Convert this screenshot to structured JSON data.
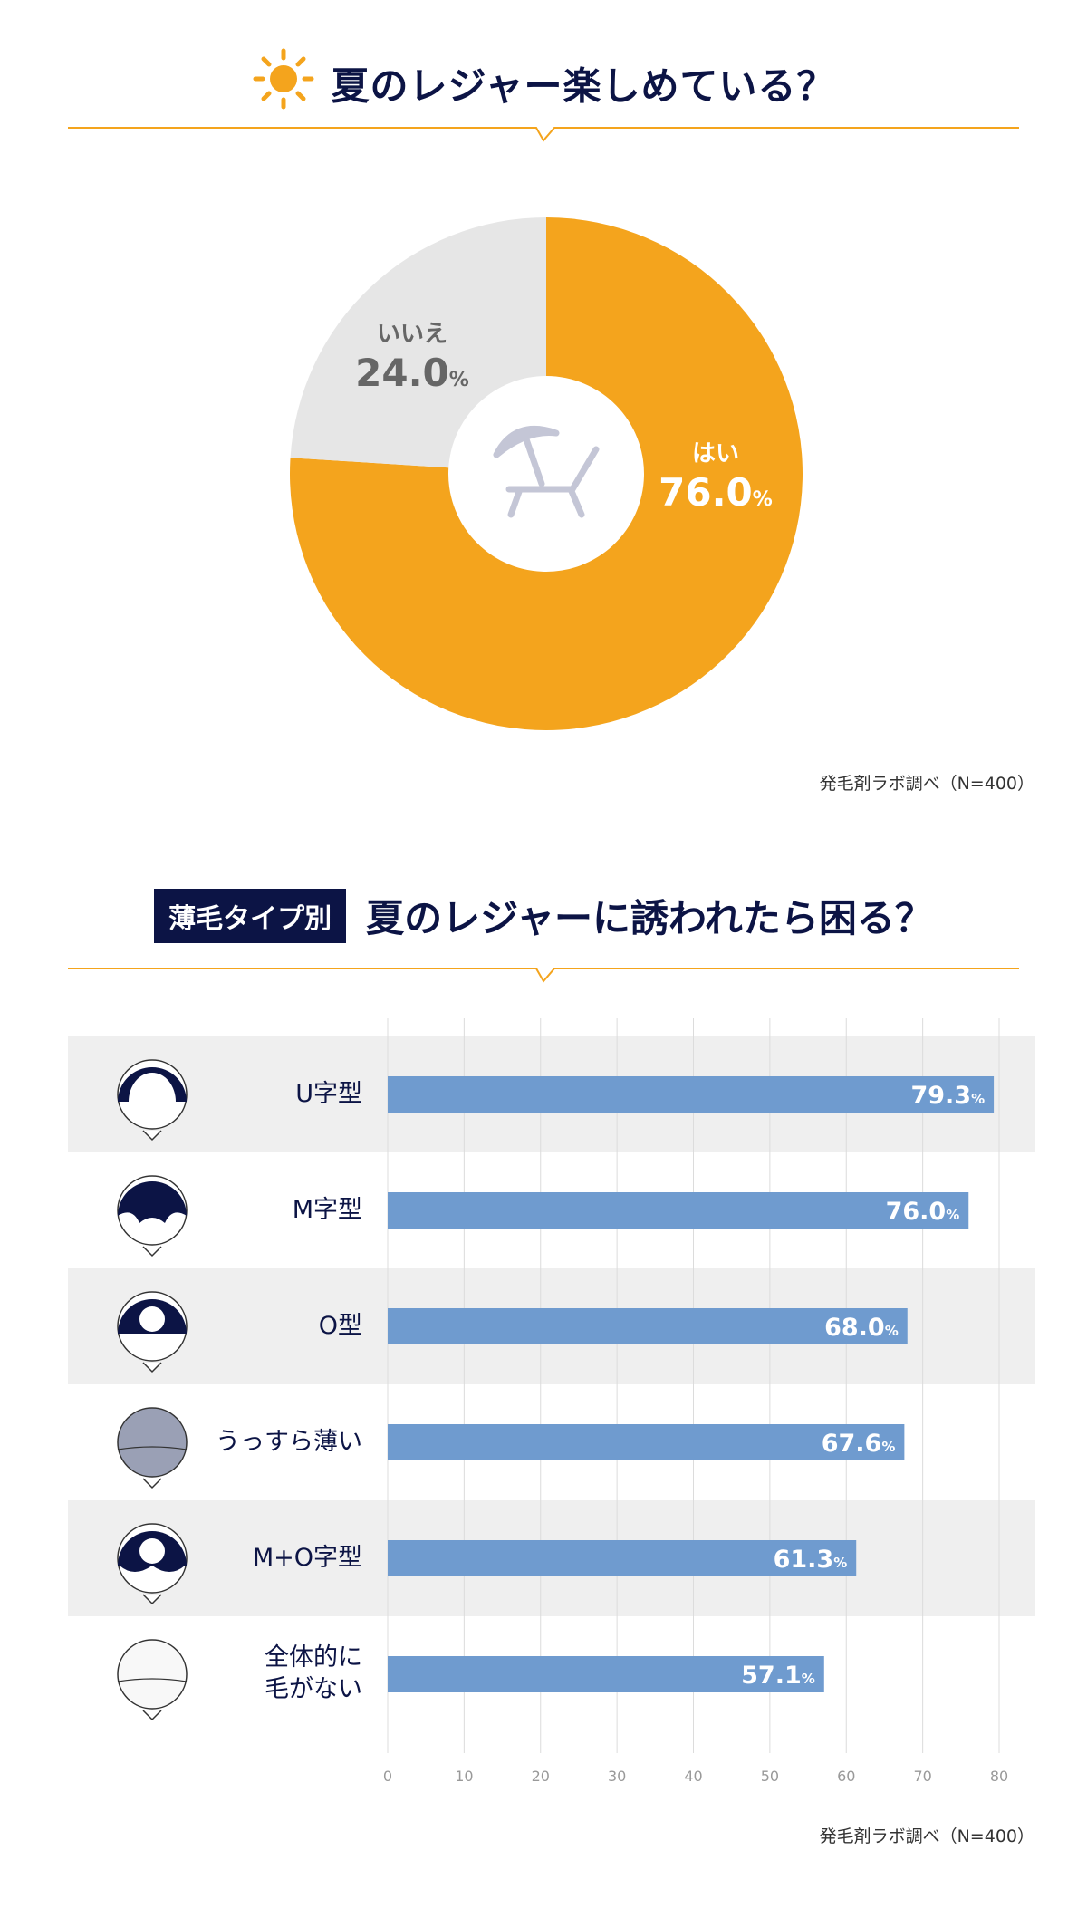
{
  "colors": {
    "navy": "#0c1445",
    "orange": "#f4a41d",
    "gray": "#e6e6e6",
    "bar": "#6f9bcf",
    "rowShade": "#efefef"
  },
  "section1": {
    "title": "夏のレジャー楽しめている？",
    "icon": "sun-icon",
    "center_icon": "beach-chair-umbrella-icon",
    "source": "発毛剤ラボ調べ（N=400）"
  },
  "section2": {
    "tag": "薄毛タイプ別",
    "title": "夏のレジャーに誘われたら困る？",
    "source": "発毛剤ラボ調べ（N=400）"
  },
  "chart_data": [
    {
      "type": "pie",
      "donut": true,
      "labels": [
        "はい",
        "いいえ"
      ],
      "values": [
        76.0,
        24.0
      ],
      "value_labels": [
        "76.0",
        "24.0"
      ],
      "unit": "%",
      "colors": [
        "#f4a41d",
        "#e6e6e6"
      ]
    },
    {
      "type": "bar",
      "orientation": "horizontal",
      "categories": [
        "U字型",
        "M字型",
        "O型",
        "うっすら薄い",
        "M+O字型",
        "全体的に\n毛がない"
      ],
      "category_icons": [
        "hair-u-type-icon",
        "hair-m-type-icon",
        "hair-o-type-icon",
        "hair-thin-icon",
        "hair-mo-type-icon",
        "hair-none-icon"
      ],
      "values": [
        79.3,
        76.0,
        68.0,
        67.6,
        61.3,
        57.1
      ],
      "value_labels": [
        "79.3",
        "76.0",
        "68.0",
        "67.6",
        "61.3",
        "57.1"
      ],
      "unit": "%",
      "xlim": [
        0,
        80
      ],
      "ticks": [
        "0",
        "10",
        "20",
        "30",
        "40",
        "50",
        "60",
        "70",
        "80"
      ],
      "grid": true,
      "color": "#6f9bcf"
    }
  ]
}
